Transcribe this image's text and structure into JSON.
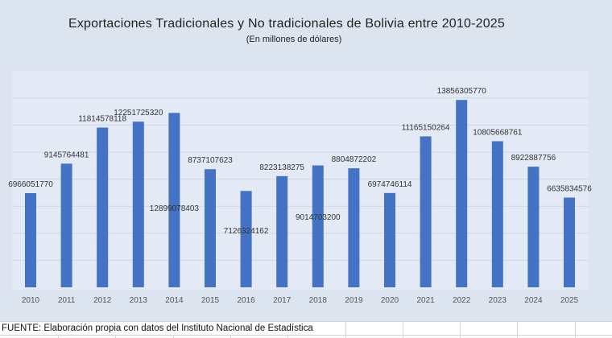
{
  "chart_data": {
    "type": "bar",
    "title": "Exportaciones  Tradicionales  y  No tradicionales  de  Bolivia  entre  2010-2025",
    "subtitle": "(En millones de dólares)",
    "xlabel": "",
    "ylabel": "",
    "ylim": [
      0,
      16000000000
    ],
    "grid": true,
    "categories": [
      "2010",
      "2011",
      "2012",
      "2013",
      "2014",
      "2015",
      "2016",
      "2017",
      "2018",
      "2019",
      "2020",
      "2021",
      "2022",
      "2023",
      "2024",
      "2025"
    ],
    "values": [
      6966051770,
      9145764481,
      11814578118,
      12251725320,
      12899078403,
      8737107623,
      7126324162,
      8223138275,
      9014703200,
      8804872202,
      6974746114,
      11165150264,
      13856305770,
      10805668761,
      8922887756,
      6635834576
    ],
    "data_labels": [
      "6966051770",
      "9145764481",
      "11814578118",
      "12251725320",
      "12899078403",
      "8737107623",
      "7126324162",
      "8223138275",
      "9014703200",
      "8804872202",
      "6974746114",
      "11165150264",
      "13856305770",
      "10805668761",
      "8922887756",
      "6635834576"
    ],
    "bar_color": "#4472c4"
  },
  "footnote": "FUENTE: Elaboración propia con datos del Instituto Nacional de Estadística"
}
